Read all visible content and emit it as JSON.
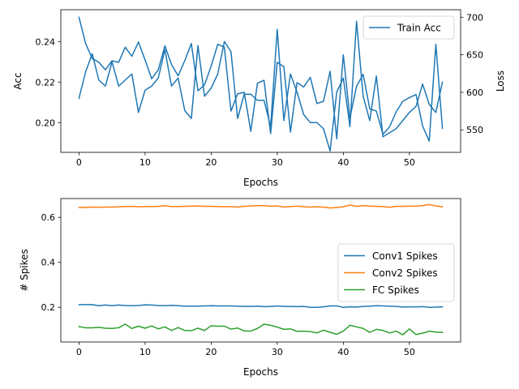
{
  "chart_data": [
    {
      "type": "line",
      "xlabel": "Epochs",
      "ylabel": "Acc",
      "y2label": "Loss",
      "grid": false,
      "legend_position": "top-right",
      "xlim": [
        -2.75,
        57.75
      ],
      "ylim": [
        0.1853,
        0.2557
      ],
      "y2lim": [
        520,
        710
      ],
      "xticks": [
        0,
        10,
        20,
        30,
        40,
        50
      ],
      "yticks": [
        0.2,
        0.22,
        0.24
      ],
      "y2ticks": [
        550,
        600,
        650,
        700
      ],
      "series": [
        {
          "name": "Train Acc",
          "axis": "left",
          "color": "#1f77b4",
          "x": [
            0,
            1,
            2,
            3,
            4,
            5,
            6,
            7,
            8,
            9,
            10,
            11,
            12,
            13,
            14,
            15,
            16,
            17,
            18,
            19,
            20,
            21,
            22,
            23,
            24,
            25,
            26,
            27,
            28,
            29,
            30,
            31,
            32,
            33,
            34,
            35,
            36,
            37,
            38,
            39,
            40,
            41,
            42,
            43,
            44,
            45,
            46,
            47,
            48,
            49,
            50,
            51,
            52,
            53,
            54,
            55
          ],
          "values": [
            0.212,
            0.225,
            0.234,
            0.221,
            0.218,
            0.23,
            0.218,
            0.221,
            0.224,
            0.205,
            0.216,
            0.218,
            0.222,
            0.236,
            0.218,
            0.222,
            0.206,
            0.202,
            0.238,
            0.213,
            0.217,
            0.224,
            0.24,
            0.235,
            0.202,
            0.214,
            0.214,
            0.211,
            0.211,
            0.198,
            0.246,
            0.201,
            0.224,
            0.215,
            0.204,
            0.2,
            0.2,
            0.197,
            0.186,
            0.215,
            0.222,
            0.198,
            0.25,
            0.213,
            0.201,
            0.223,
            0.193,
            0.195,
            0.197,
            0.201,
            0.205,
            0.208,
            0.219,
            0.209,
            0.205,
            0.22
          ]
        },
        {
          "name": "",
          "axis": "right",
          "color": "#1f77b4",
          "x": [
            0,
            1,
            2,
            3,
            4,
            5,
            6,
            7,
            8,
            9,
            10,
            11,
            12,
            13,
            14,
            15,
            16,
            17,
            18,
            19,
            20,
            21,
            22,
            23,
            24,
            25,
            26,
            27,
            28,
            29,
            30,
            31,
            32,
            33,
            34,
            35,
            36,
            37,
            38,
            39,
            40,
            41,
            42,
            43,
            44,
            45,
            46,
            47,
            48,
            49,
            50,
            51,
            52,
            53,
            54,
            55
          ],
          "values": [
            700,
            665,
            645,
            640,
            630,
            642,
            640,
            660,
            648,
            667,
            643,
            618,
            630,
            662,
            637,
            622,
            642,
            665,
            602,
            610,
            635,
            664,
            660,
            575,
            598,
            600,
            548,
            612,
            616,
            545,
            640,
            634,
            547,
            613,
            607,
            620,
            585,
            588,
            628,
            538,
            650,
            566,
            608,
            624,
            578,
            575,
            544,
            554,
            574,
            588,
            593,
            597,
            555,
            535,
            664,
            552
          ]
        }
      ]
    },
    {
      "type": "line",
      "xlabel": "Epochs",
      "ylabel": "# Spikes",
      "grid": false,
      "legend_position": "center-right",
      "xlim": [
        -2.75,
        57.75
      ],
      "ylim": [
        0.0457,
        0.6837
      ],
      "xticks": [
        0,
        10,
        20,
        30,
        40,
        50
      ],
      "yticks": [
        0.2,
        0.4,
        0.6
      ],
      "series": [
        {
          "name": "Conv1 Spikes",
          "color": "#1f77b4",
          "x": [
            0,
            1,
            2,
            3,
            4,
            5,
            6,
            7,
            8,
            9,
            10,
            11,
            12,
            13,
            14,
            15,
            16,
            17,
            18,
            19,
            20,
            21,
            22,
            23,
            24,
            25,
            26,
            27,
            28,
            29,
            30,
            31,
            32,
            33,
            34,
            35,
            36,
            37,
            38,
            39,
            40,
            41,
            42,
            43,
            44,
            45,
            46,
            47,
            48,
            49,
            50,
            51,
            52,
            53,
            54,
            55
          ],
          "values": [
            0.212,
            0.212,
            0.212,
            0.207,
            0.21,
            0.207,
            0.21,
            0.208,
            0.207,
            0.208,
            0.211,
            0.21,
            0.208,
            0.207,
            0.209,
            0.207,
            0.205,
            0.205,
            0.205,
            0.206,
            0.207,
            0.206,
            0.206,
            0.206,
            0.205,
            0.204,
            0.204,
            0.205,
            0.203,
            0.204,
            0.206,
            0.204,
            0.204,
            0.203,
            0.204,
            0.2,
            0.2,
            0.202,
            0.206,
            0.206,
            0.2,
            0.202,
            0.201,
            0.204,
            0.205,
            0.207,
            0.206,
            0.205,
            0.204,
            0.201,
            0.202,
            0.202,
            0.203,
            0.2,
            0.201,
            0.202
          ]
        },
        {
          "name": "Conv2 Spikes",
          "color": "#ff7f0e",
          "x": [
            0,
            1,
            2,
            3,
            4,
            5,
            6,
            7,
            8,
            9,
            10,
            11,
            12,
            13,
            14,
            15,
            16,
            17,
            18,
            19,
            20,
            21,
            22,
            23,
            24,
            25,
            26,
            27,
            28,
            29,
            30,
            31,
            32,
            33,
            34,
            35,
            36,
            37,
            38,
            39,
            40,
            41,
            42,
            43,
            44,
            45,
            46,
            47,
            48,
            49,
            50,
            51,
            52,
            53,
            54,
            55
          ],
          "values": [
            0.644,
            0.644,
            0.646,
            0.645,
            0.646,
            0.646,
            0.647,
            0.648,
            0.649,
            0.647,
            0.648,
            0.648,
            0.649,
            0.652,
            0.648,
            0.648,
            0.649,
            0.65,
            0.651,
            0.649,
            0.649,
            0.648,
            0.647,
            0.648,
            0.646,
            0.649,
            0.651,
            0.652,
            0.652,
            0.65,
            0.651,
            0.646,
            0.648,
            0.65,
            0.647,
            0.646,
            0.647,
            0.646,
            0.642,
            0.644,
            0.647,
            0.655,
            0.649,
            0.652,
            0.65,
            0.649,
            0.648,
            0.645,
            0.649,
            0.649,
            0.65,
            0.65,
            0.652,
            0.657,
            0.651,
            0.647
          ]
        },
        {
          "name": "FC Spikes",
          "color": "#2ca02c",
          "x": [
            0,
            1,
            2,
            3,
            4,
            5,
            6,
            7,
            8,
            9,
            10,
            11,
            12,
            13,
            14,
            15,
            16,
            17,
            18,
            19,
            20,
            21,
            22,
            23,
            24,
            25,
            26,
            27,
            28,
            29,
            30,
            31,
            32,
            33,
            34,
            35,
            36,
            37,
            38,
            39,
            40,
            41,
            42,
            43,
            44,
            45,
            46,
            47,
            48,
            49,
            50,
            51,
            52,
            53,
            54,
            55
          ],
          "values": [
            0.114,
            0.109,
            0.109,
            0.111,
            0.107,
            0.106,
            0.109,
            0.125,
            0.106,
            0.116,
            0.107,
            0.117,
            0.104,
            0.113,
            0.097,
            0.11,
            0.097,
            0.096,
            0.107,
            0.097,
            0.118,
            0.116,
            0.116,
            0.103,
            0.108,
            0.095,
            0.094,
            0.106,
            0.125,
            0.12,
            0.112,
            0.102,
            0.104,
            0.093,
            0.094,
            0.092,
            0.086,
            0.098,
            0.089,
            0.08,
            0.094,
            0.12,
            0.113,
            0.106,
            0.088,
            0.102,
            0.097,
            0.086,
            0.094,
            0.078,
            0.104,
            0.079,
            0.085,
            0.094,
            0.09,
            0.088
          ]
        }
      ]
    }
  ]
}
